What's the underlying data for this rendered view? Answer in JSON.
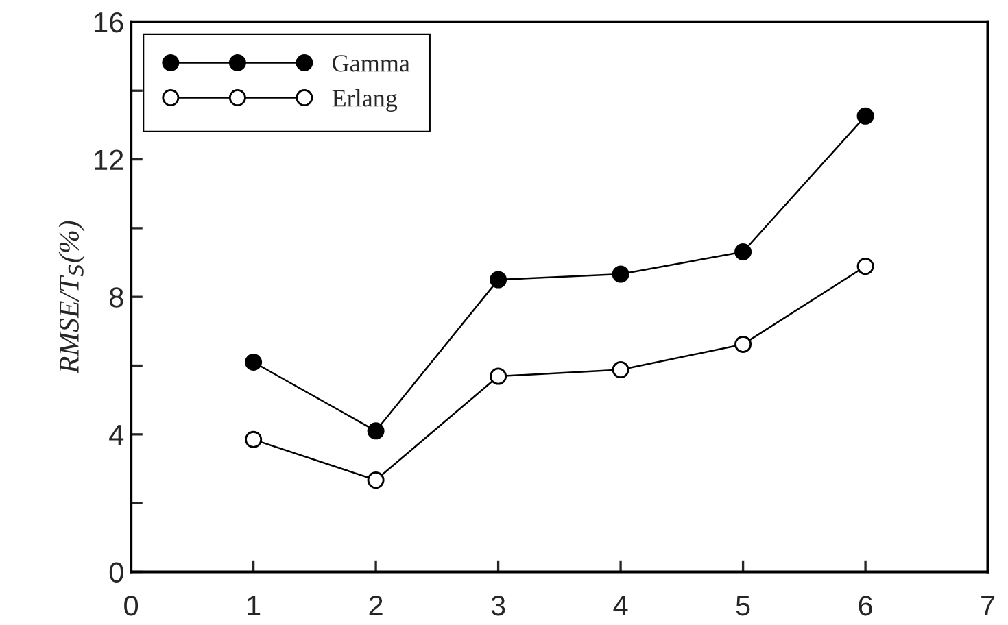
{
  "chart_data": {
    "type": "line",
    "ylabel": "RMSE/T$_{S}$(%)",
    "x": [
      1,
      2,
      3,
      4,
      5,
      6
    ],
    "series": [
      {
        "name": "Gamma",
        "color": "#000000",
        "values": [
          6.1,
          4.1,
          8.5,
          8.66,
          9.31,
          13.26
        ]
      },
      {
        "name": "Erlang",
        "color": "#000000",
        "values": [
          3.85,
          2.67,
          5.69,
          5.88,
          6.62,
          8.89
        ]
      }
    ],
    "xlim": [
      0,
      7
    ],
    "xticks": [
      0,
      1,
      2,
      3,
      4,
      5,
      6,
      7
    ],
    "ylim": [
      0,
      16
    ],
    "yticks": [
      0,
      {
        "value": 2,
        "label": null
      },
      4,
      {
        "value": 6,
        "label": null
      },
      8,
      {
        "value": 10,
        "label": null
      },
      12,
      {
        "value": 14,
        "label": null
      },
      16
    ],
    "marker": "circle",
    "line_style": "solid",
    "grid": false,
    "legend": "top left"
  }
}
